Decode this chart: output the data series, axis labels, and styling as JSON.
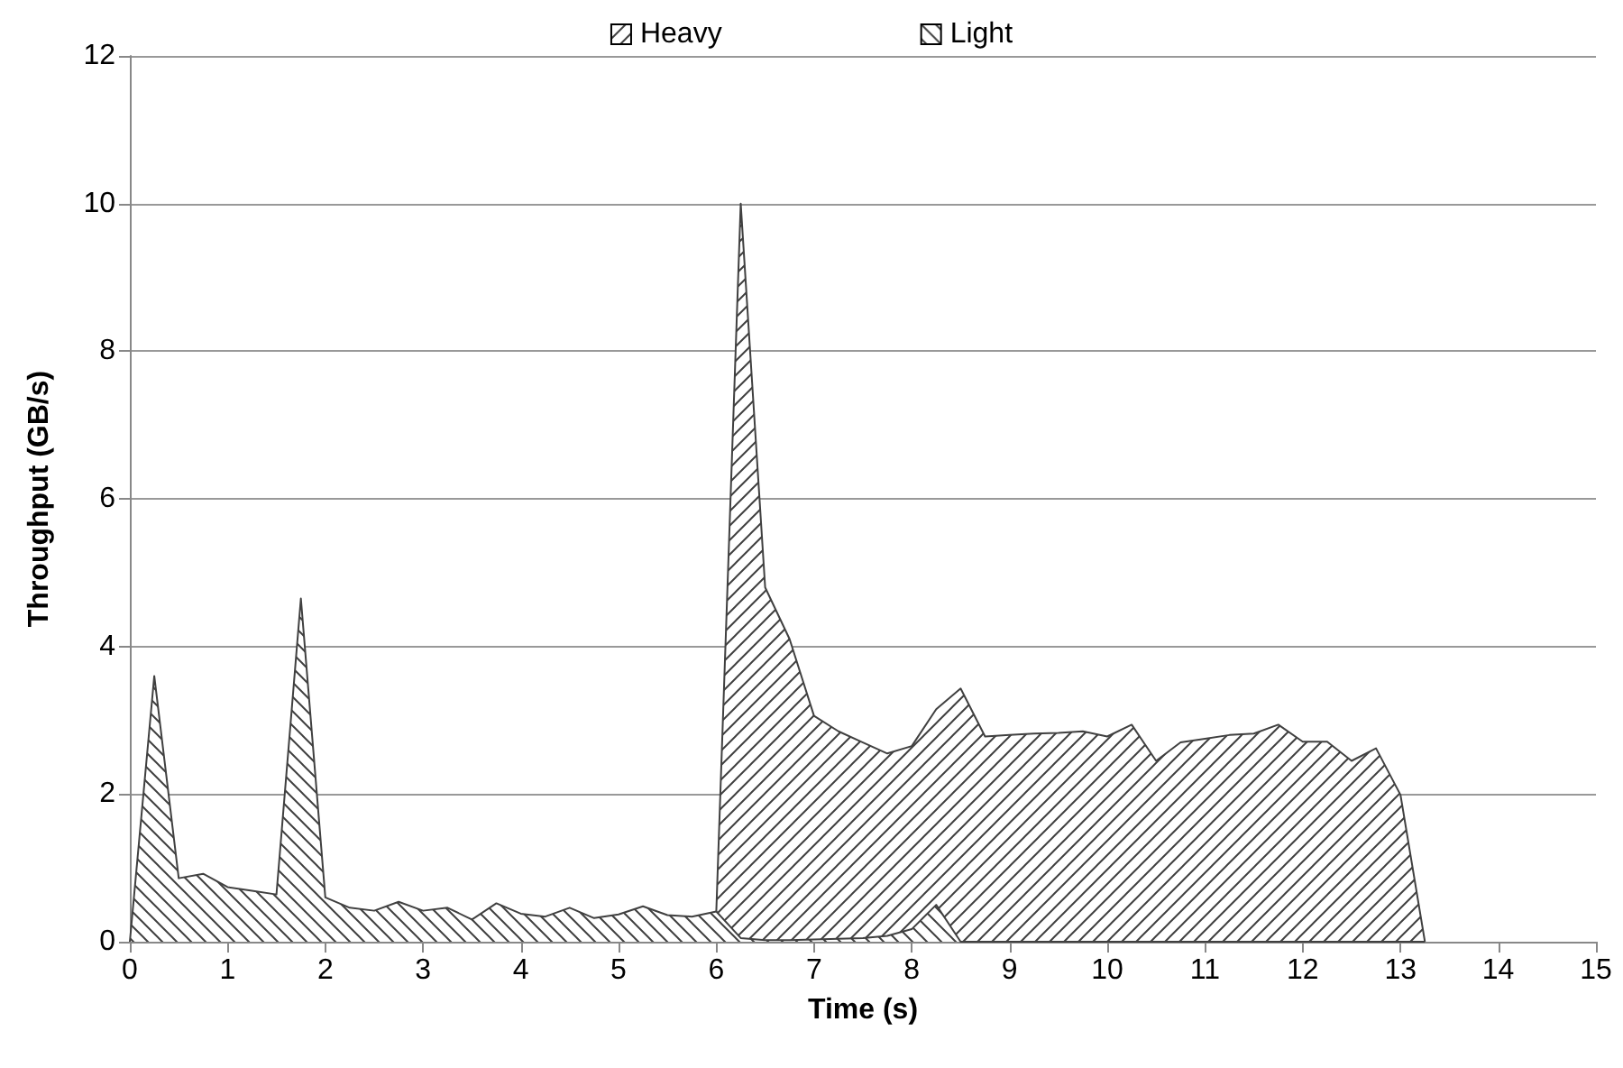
{
  "chart_data": {
    "type": "area",
    "xlabel": "Time (s)",
    "ylabel": "Throughput (GB/s)",
    "x": [
      0,
      0.25,
      0.5,
      0.75,
      1,
      1.25,
      1.5,
      1.75,
      2,
      2.25,
      2.5,
      2.75,
      3,
      3.25,
      3.5,
      3.75,
      4,
      4.25,
      4.5,
      4.75,
      5,
      5.25,
      5.5,
      5.75,
      6,
      6.25,
      6.5,
      6.75,
      7,
      7.25,
      7.5,
      7.75,
      8,
      8.25,
      8.5,
      8.75,
      9,
      9.25,
      9.5,
      9.75,
      10,
      10.25,
      10.5,
      10.75,
      11,
      11.25,
      11.5,
      11.75,
      12,
      12.25,
      12.5,
      12.75,
      13,
      13.25
    ],
    "series": [
      {
        "name": "Heavy",
        "color": "#404040",
        "values": [
          null,
          null,
          null,
          null,
          null,
          null,
          null,
          null,
          null,
          null,
          null,
          null,
          null,
          null,
          null,
          null,
          null,
          null,
          null,
          null,
          null,
          null,
          null,
          null,
          0.41,
          10,
          4.8,
          4.1,
          3.06,
          2.85,
          2.7,
          2.55,
          2.65,
          3.15,
          3.43,
          2.78,
          2.8,
          2.82,
          2.83,
          2.85,
          2.78,
          2.94,
          2.45,
          2.7,
          2.75,
          2.8,
          2.82,
          2.94,
          2.71,
          2.71,
          2.45,
          2.62,
          1.99,
          0
        ]
      },
      {
        "name": "Light",
        "color": "#404040",
        "values": [
          0,
          3.6,
          0.86,
          0.92,
          0.74,
          0.69,
          0.64,
          4.65,
          0.6,
          0.46,
          0.42,
          0.54,
          0.42,
          0.46,
          0.3,
          0.52,
          0.38,
          0.34,
          0.46,
          0.32,
          0.37,
          0.48,
          0.36,
          0.34,
          0.41,
          0.05,
          0.02,
          0.02,
          0.03,
          0.04,
          0.05,
          0.08,
          0.17,
          0.5,
          0,
          0,
          0,
          0,
          0,
          0,
          0,
          0,
          0,
          0,
          0,
          0,
          0,
          0,
          0,
          0,
          0,
          0,
          0,
          0
        ]
      }
    ],
    "xlim": [
      0,
      15
    ],
    "xticks": [
      0,
      1,
      2,
      3,
      4,
      5,
      6,
      7,
      8,
      9,
      10,
      11,
      12,
      13,
      14,
      15
    ],
    "ylim": [
      0,
      12
    ],
    "yticks": [
      0,
      2,
      4,
      6,
      8,
      10,
      12
    ],
    "grid": "y",
    "legend": "top"
  }
}
